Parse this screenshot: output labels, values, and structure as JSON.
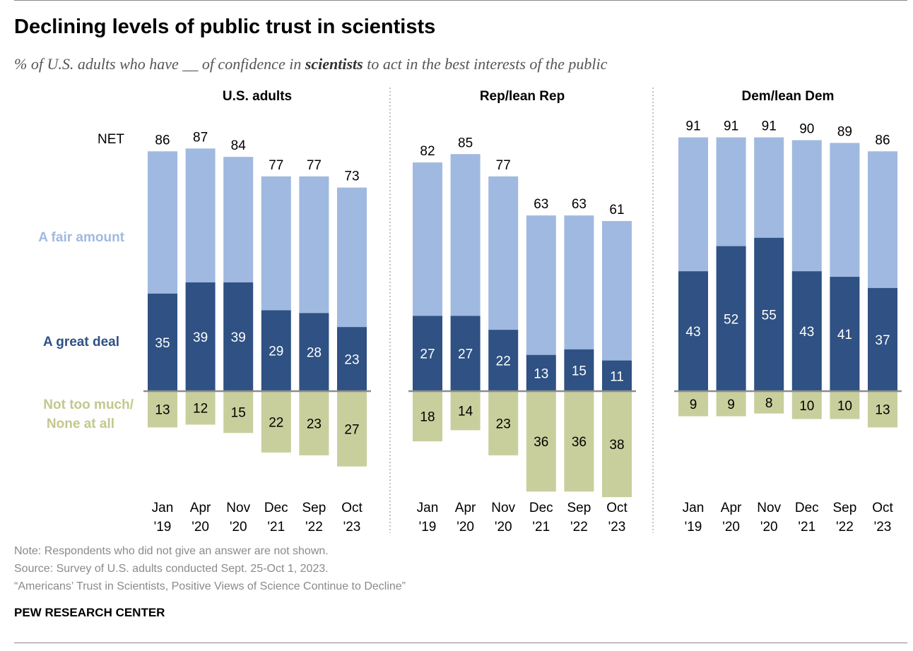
{
  "title": "Declining levels of public trust in scientists",
  "subtitle": {
    "before": "% of U.S. adults who have __ of confidence in ",
    "emphasis": "scientists",
    "after": " to act in the best interests of the public"
  },
  "legend": {
    "net_label": "NET",
    "fair_label": "A fair amount",
    "great_label": "A great deal",
    "not_label_line1": "Not too much/",
    "not_label_line2": "None at all"
  },
  "colors": {
    "fair": "#a0b9e0",
    "great": "#2f5183",
    "not": "#c8cf9c",
    "fair_text": "#a0b9e0",
    "great_text": "#2f5183",
    "not_text": "#c3c88c"
  },
  "chart_data": {
    "type": "bar",
    "stacked": true,
    "categories": [
      {
        "month": "Jan",
        "year": "'19"
      },
      {
        "month": "Apr",
        "year": "'20"
      },
      {
        "month": "Nov",
        "year": "'20"
      },
      {
        "month": "Dec",
        "year": "'21"
      },
      {
        "month": "Sep",
        "year": "'22"
      },
      {
        "month": "Oct",
        "year": "'23"
      }
    ],
    "panels": [
      {
        "name": "U.S. adults",
        "net": [
          86,
          87,
          84,
          77,
          77,
          73
        ],
        "great_deal": [
          35,
          39,
          39,
          29,
          28,
          23
        ],
        "not_too_much": [
          13,
          12,
          15,
          22,
          23,
          27
        ]
      },
      {
        "name": "Rep/lean Rep",
        "net": [
          82,
          85,
          77,
          63,
          63,
          61
        ],
        "great_deal": [
          27,
          27,
          22,
          13,
          15,
          11
        ],
        "not_too_much": [
          18,
          14,
          23,
          36,
          36,
          38
        ]
      },
      {
        "name": "Dem/lean Dem",
        "net": [
          91,
          91,
          91,
          90,
          89,
          86
        ],
        "great_deal": [
          43,
          52,
          55,
          43,
          41,
          37
        ],
        "not_too_much": [
          9,
          9,
          8,
          10,
          10,
          13
        ]
      }
    ]
  },
  "footer": {
    "note": "Note: Respondents who did not give an answer are not shown.",
    "source": "Source: Survey of U.S. adults conducted Sept. 25-Oct 1, 2023.",
    "report": "“Americans’ Trust in Scientists, Positive Views of Science Continue to Decline”",
    "org": "PEW RESEARCH CENTER"
  }
}
